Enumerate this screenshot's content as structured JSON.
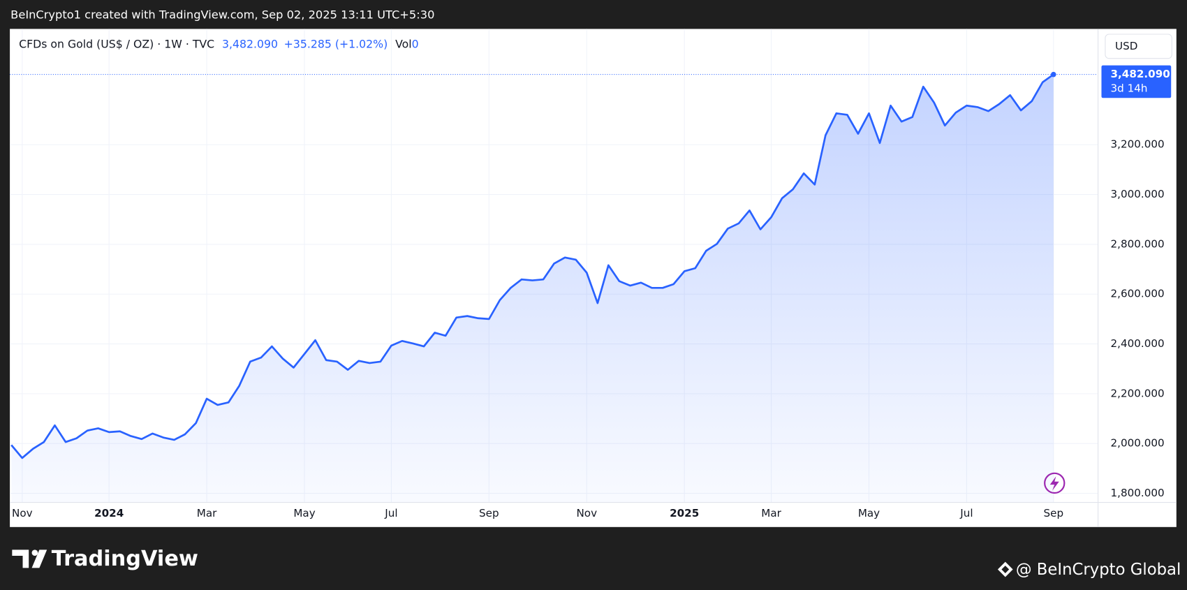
{
  "header": {
    "caption": "BeInCrypto1 created with TradingView.com, Sep 02, 2025 13:11 UTC+5:30"
  },
  "legend": {
    "symbol": "CFDs on Gold (US$ / OZ) · 1W · TVC",
    "price": "3,482.090",
    "change": "+35.285 (+1.02%)",
    "volume_label": "Vol",
    "volume": "0"
  },
  "currency_button": "USD",
  "price_tag": {
    "price": "3,482.090",
    "countdown": "3d 14h"
  },
  "footer": {
    "brand": "TradingView",
    "credit": "@ BeInCrypto Global"
  },
  "chart_data": {
    "type": "area",
    "series": [
      {
        "name": "CFDs on Gold",
        "color": "#2962ff",
        "values": [
          1994,
          1942,
          1979,
          2006,
          2073,
          2006,
          2021,
          2052,
          2061,
          2046,
          2049,
          2030,
          2018,
          2040,
          2024,
          2015,
          2037,
          2082,
          2180,
          2155,
          2165,
          2232,
          2329,
          2345,
          2390,
          2341,
          2305,
          2360,
          2415,
          2335,
          2329,
          2296,
          2332,
          2323,
          2329,
          2393,
          2412,
          2402,
          2390,
          2445,
          2433,
          2506,
          2512,
          2503,
          2500,
          2576,
          2625,
          2659,
          2655,
          2659,
          2723,
          2747,
          2738,
          2686,
          2564,
          2716,
          2652,
          2634,
          2646,
          2625,
          2625,
          2640,
          2692,
          2704,
          2774,
          2802,
          2863,
          2884,
          2936,
          2860,
          2909,
          2985,
          3021,
          3085,
          3040,
          3238,
          3326,
          3320,
          3244,
          3326,
          3207,
          3357,
          3293,
          3311,
          3433,
          3369,
          3277,
          3329,
          3357,
          3351,
          3335,
          3363,
          3399,
          3338,
          3375,
          3451,
          3482.09
        ]
      }
    ],
    "xlim": [
      0,
      100
    ],
    "xticks": [
      {
        "value": 1,
        "label": "Nov"
      },
      {
        "value": 9,
        "label": "2024",
        "bold": true
      },
      {
        "value": 18,
        "label": "Mar"
      },
      {
        "value": 27,
        "label": "May"
      },
      {
        "value": 35,
        "label": "Jul"
      },
      {
        "value": 44,
        "label": "Sep"
      },
      {
        "value": 53,
        "label": "Nov"
      },
      {
        "value": 62,
        "label": "2025",
        "bold": true
      },
      {
        "value": 70,
        "label": "Mar"
      },
      {
        "value": 79,
        "label": "May"
      },
      {
        "value": 88,
        "label": "Jul"
      },
      {
        "value": 96,
        "label": "Sep"
      }
    ],
    "ylim": [
      1765,
      3665
    ],
    "yticks": [
      {
        "value": 1800,
        "label": "1,800.000"
      },
      {
        "value": 2000,
        "label": "2,000.000"
      },
      {
        "value": 2200,
        "label": "2,200.000"
      },
      {
        "value": 2400,
        "label": "2,400.000"
      },
      {
        "value": 2600,
        "label": "2,600.000"
      },
      {
        "value": 2800,
        "label": "2,800.000"
      },
      {
        "value": 3000,
        "label": "3,000.000"
      },
      {
        "value": 3200,
        "label": "3,200.000"
      }
    ],
    "grid": true
  }
}
